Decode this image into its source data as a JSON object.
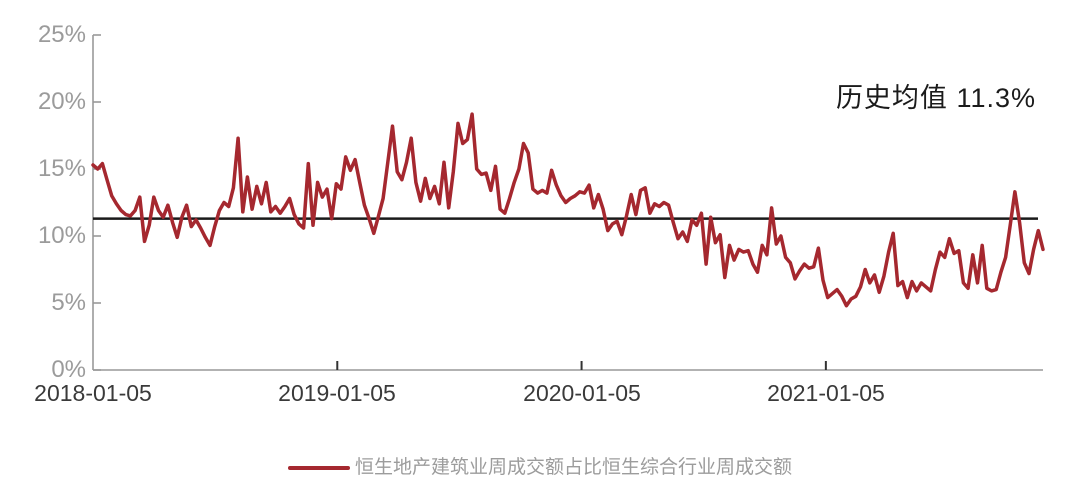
{
  "chart_data": {
    "type": "line",
    "title": "",
    "frequency": "weekly",
    "x_start": "2018-01-05",
    "annotation": "历史均值 11.3%",
    "mean_value": 11.3,
    "ylim": [
      0,
      25
    ],
    "grid": false,
    "legend_position": "bottom",
    "y_tick_labels": [
      "0%",
      "5%",
      "10%",
      "15%",
      "20%",
      "25%"
    ],
    "y_tick_values": [
      0,
      5,
      10,
      15,
      20,
      25
    ],
    "x_tick_labels": [
      "2018-01-05",
      "2019-01-05",
      "2020-01-05",
      "2021-01-05"
    ],
    "x_tick_weeks": [
      0,
      52.2,
      104.4,
      156.6
    ],
    "axis_color": "#999999",
    "x_tick_color": "#333333",
    "mean_line_color": "#1a1a1a",
    "series": [
      {
        "name": "恒生地产建筑业周成交额占比恒生综合行业周成交额",
        "color": "#a5282f",
        "values": [
          15.3,
          15.0,
          15.4,
          14.2,
          13.0,
          12.4,
          11.9,
          11.6,
          11.5,
          11.9,
          12.9,
          9.6,
          10.8,
          12.9,
          11.9,
          11.4,
          12.3,
          11.0,
          9.9,
          11.4,
          12.3,
          10.7,
          11.2,
          10.6,
          9.9,
          9.3,
          10.7,
          11.9,
          12.5,
          12.2,
          13.6,
          17.3,
          11.8,
          14.4,
          12.0,
          13.7,
          12.4,
          14.0,
          11.8,
          12.2,
          11.7,
          12.2,
          12.8,
          11.6,
          10.9,
          10.6,
          15.4,
          10.8,
          14.0,
          12.9,
          13.5,
          11.3,
          13.9,
          13.5,
          15.9,
          14.9,
          15.7,
          14.0,
          12.3,
          11.3,
          10.2,
          11.5,
          12.8,
          15.5,
          18.2,
          14.8,
          14.2,
          15.5,
          17.3,
          14.0,
          12.6,
          14.3,
          12.8,
          13.7,
          12.4,
          15.5,
          12.1,
          14.8,
          18.4,
          16.9,
          17.2,
          19.1,
          15.0,
          14.6,
          14.7,
          13.4,
          15.2,
          12.0,
          11.7,
          12.8,
          14.0,
          15.0,
          16.9,
          16.2,
          13.5,
          13.2,
          13.4,
          13.2,
          14.9,
          13.8,
          13.0,
          12.5,
          12.8,
          13.0,
          13.3,
          13.2,
          13.8,
          12.1,
          13.1,
          12.0,
          10.4,
          10.9,
          11.1,
          10.1,
          11.5,
          13.1,
          11.6,
          13.4,
          13.6,
          11.7,
          12.4,
          12.2,
          12.5,
          12.3,
          11.0,
          9.8,
          10.3,
          9.6,
          11.2,
          10.8,
          11.7,
          7.9,
          11.4,
          9.5,
          10.1,
          6.9,
          9.3,
          8.2,
          9.0,
          8.8,
          8.9,
          7.9,
          7.3,
          9.3,
          8.6,
          12.1,
          9.4,
          10.0,
          8.4,
          8.0,
          6.8,
          7.4,
          7.9,
          7.6,
          7.7,
          9.1,
          6.7,
          5.4,
          5.7,
          6.0,
          5.5,
          4.8,
          5.3,
          5.5,
          6.2,
          7.5,
          6.5,
          7.1,
          5.8,
          7.0,
          8.8,
          10.2,
          6.3,
          6.6,
          5.4,
          6.6,
          5.9,
          6.5,
          6.2,
          5.9,
          7.5,
          8.8,
          8.4,
          9.8,
          8.7,
          8.9,
          6.5,
          6.1,
          8.6,
          6.5,
          9.3,
          6.1,
          5.9,
          6.0,
          7.3,
          8.4,
          10.8,
          13.3,
          11.0,
          8.0,
          7.2,
          9.0,
          10.4,
          9.0
        ]
      }
    ]
  }
}
